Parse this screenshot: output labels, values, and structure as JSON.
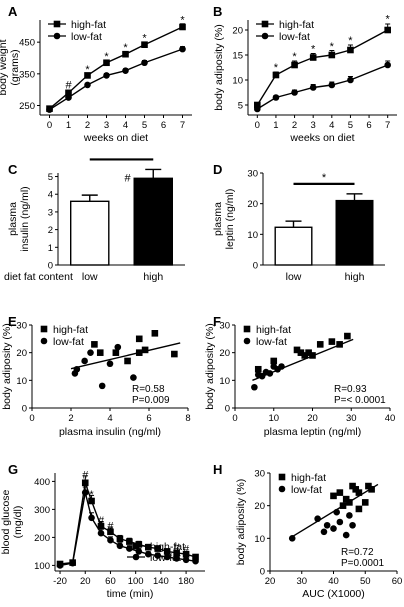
{
  "chart_data": [
    {
      "id": "A",
      "type": "line",
      "panel_label": "A",
      "xlabel": "weeks on diet",
      "ylabel": "body weight (grams)",
      "xlim": [
        -0.5,
        7.5
      ],
      "ylim": [
        220,
        520
      ],
      "xticks": [
        0,
        1,
        2,
        3,
        4,
        5,
        6,
        7
      ],
      "yticks": [
        250,
        350,
        450
      ],
      "series": [
        {
          "name": "high-fat",
          "marker": "square",
          "x": [
            0,
            1,
            2,
            3,
            4,
            5,
            7
          ],
          "y": [
            240,
            290,
            345,
            385,
            412,
            442,
            498
          ],
          "err": [
            5,
            6,
            6,
            7,
            7,
            8,
            10
          ]
        },
        {
          "name": "low-fat",
          "marker": "circle",
          "x": [
            0,
            1,
            2,
            3,
            4,
            5,
            7
          ],
          "y": [
            237,
            275,
            315,
            345,
            360,
            385,
            428
          ],
          "err": [
            5,
            5,
            5,
            6,
            6,
            7,
            8
          ]
        }
      ],
      "annotations": [
        {
          "x": 1,
          "y": 316,
          "text": "#"
        },
        {
          "x": 2,
          "y": 366,
          "text": "*"
        },
        {
          "x": 3,
          "y": 406,
          "text": "*"
        },
        {
          "x": 4,
          "y": 434,
          "text": "*"
        },
        {
          "x": 5,
          "y": 464,
          "text": "*"
        },
        {
          "x": 7,
          "y": 522,
          "text": "*"
        }
      ],
      "legend": "top-left"
    },
    {
      "id": "B",
      "type": "line",
      "panel_label": "B",
      "xlabel": "weeks on diet",
      "ylabel": "body adiposity (%)",
      "xlim": [
        -0.5,
        7.5
      ],
      "ylim": [
        3,
        22
      ],
      "xticks": [
        0,
        1,
        2,
        3,
        4,
        5,
        6,
        7
      ],
      "yticks": [
        5,
        10,
        15,
        20
      ],
      "series": [
        {
          "name": "high-fat",
          "marker": "square",
          "x": [
            0,
            1,
            2,
            3,
            4,
            5,
            7
          ],
          "y": [
            5,
            11,
            13,
            14.5,
            15,
            16,
            20
          ],
          "err": [
            0.4,
            0.6,
            0.8,
            0.8,
            0.9,
            1,
            1.2
          ]
        },
        {
          "name": "low-fat",
          "marker": "circle",
          "x": [
            0,
            1,
            2,
            3,
            4,
            5,
            7
          ],
          "y": [
            4.2,
            6.5,
            7.5,
            8.5,
            9,
            10,
            13
          ],
          "err": [
            0.3,
            0.4,
            0.5,
            0.6,
            0.6,
            0.7,
            0.8
          ]
        }
      ],
      "annotations": [
        {
          "x": 1,
          "y": 12.6,
          "text": "*"
        },
        {
          "x": 2,
          "y": 14.8,
          "text": "*"
        },
        {
          "x": 3,
          "y": 16.3,
          "text": "*"
        },
        {
          "x": 4,
          "y": 16.8,
          "text": "*"
        },
        {
          "x": 5,
          "y": 18.0,
          "text": "*"
        },
        {
          "x": 7,
          "y": 22.3,
          "text": "*"
        }
      ],
      "legend": "top-left"
    },
    {
      "id": "C",
      "type": "bar",
      "panel_label": "C",
      "ylabel": "plasma insulin (ng/ml)",
      "ylim": [
        0,
        5.2
      ],
      "yticks": [
        0,
        1,
        2,
        3,
        4,
        5
      ],
      "row_label": "diet fat content",
      "categories": [
        "low",
        "high"
      ],
      "values": [
        3.6,
        4.9
      ],
      "err": [
        0.35,
        0.5
      ],
      "fills": [
        "#ffffff",
        "#000000"
      ],
      "significance": "#"
    },
    {
      "id": "D",
      "type": "bar",
      "panel_label": "D",
      "ylabel": "plasma leptin (ng/ml)",
      "ylim": [
        0,
        30
      ],
      "yticks": [
        0,
        10,
        20,
        30
      ],
      "categories": [
        "low",
        "high"
      ],
      "values": [
        12.3,
        21
      ],
      "err": [
        2,
        2.2
      ],
      "fills": [
        "#ffffff",
        "#000000"
      ],
      "significance": "*"
    },
    {
      "id": "E",
      "type": "scatter",
      "panel_label": "E",
      "xlabel": "plasma insulin (ng/ml)",
      "ylabel": "body adiposity (%)",
      "xlim": [
        0,
        8
      ],
      "ylim": [
        0,
        30
      ],
      "xticks": [
        0,
        2,
        4,
        6,
        8
      ],
      "yticks": [
        0,
        10,
        20,
        30
      ],
      "series": [
        {
          "name": "high-fat",
          "marker": "square",
          "x": [
            3.2,
            3.5,
            4.3,
            4.9,
            5.5,
            5.5,
            5.8,
            6.3,
            7.3
          ],
          "y": [
            23,
            20,
            20,
            17,
            25,
            20,
            21,
            27,
            19.5
          ]
        },
        {
          "name": "low-fat",
          "marker": "circle",
          "x": [
            2.2,
            2.3,
            2.7,
            3.0,
            3.6,
            4.0,
            4.4,
            5.2
          ],
          "y": [
            12.5,
            14,
            17,
            20,
            8,
            16,
            22,
            11
          ]
        }
      ],
      "fit_line": [
        [
          2.0,
          14.2
        ],
        [
          7.6,
          23.5
        ]
      ],
      "stats": [
        "R=0.58",
        "P=0.009"
      ],
      "legend": "top-left"
    },
    {
      "id": "F",
      "type": "scatter",
      "panel_label": "F",
      "xlabel": "plasma leptin (ng/ml)",
      "ylabel": "body adiposity (%)",
      "xlim": [
        0,
        40
      ],
      "ylim": [
        0,
        30
      ],
      "xticks": [
        0,
        10,
        20,
        30,
        40
      ],
      "yticks": [
        0,
        10,
        20,
        30
      ],
      "series": [
        {
          "name": "high-fat",
          "marker": "square",
          "x": [
            6,
            10,
            16,
            17,
            18,
            19,
            20,
            22,
            25,
            27,
            29
          ],
          "y": [
            14,
            17,
            21,
            20,
            19,
            20,
            19,
            23,
            24,
            23,
            26
          ]
        },
        {
          "name": "low-fat",
          "marker": "circle",
          "x": [
            5,
            6,
            7,
            8,
            9,
            10,
            11,
            12
          ],
          "y": [
            7.5,
            12,
            11.5,
            13,
            12.5,
            15,
            14,
            15
          ]
        }
      ],
      "fit_line": [
        [
          4.5,
          10.0
        ],
        [
          30.5,
          24.8
        ]
      ],
      "stats": [
        "R=0.93",
        "P=< 0.0001"
      ],
      "legend": "top-left"
    },
    {
      "id": "G",
      "type": "line",
      "panel_label": "G",
      "xlabel": "time  (min)",
      "ylabel": "blood glucose (mg/dl)",
      "xlim": [
        -28,
        210
      ],
      "ylim": [
        80,
        430
      ],
      "xticks": [
        -20,
        20,
        60,
        100,
        140,
        180
      ],
      "yticks": [
        100,
        200,
        300,
        400
      ],
      "series": [
        {
          "name": "high-fat",
          "marker": "square",
          "x": [
            -20,
            0,
            20,
            30,
            45,
            60,
            75,
            90,
            105,
            120,
            135,
            150,
            165,
            180,
            195
          ],
          "y": [
            105,
            110,
            395,
            330,
            240,
            220,
            195,
            185,
            175,
            165,
            160,
            150,
            145,
            140,
            130
          ],
          "err": [
            5,
            5,
            25,
            20,
            15,
            14,
            12,
            12,
            11,
            10,
            10,
            9,
            9,
            9,
            8
          ]
        },
        {
          "name": "low-fat",
          "marker": "circle",
          "x": [
            -20,
            0,
            20,
            30,
            45,
            60,
            75,
            90,
            105,
            120,
            135,
            150,
            165,
            180,
            195
          ],
          "y": [
            100,
            108,
            360,
            270,
            215,
            190,
            170,
            160,
            150,
            140,
            135,
            130,
            125,
            120,
            115
          ],
          "err": [
            5,
            5,
            20,
            18,
            14,
            12,
            11,
            10,
            10,
            9,
            9,
            8,
            8,
            8,
            7
          ]
        }
      ],
      "annotations": [
        {
          "x": 20,
          "y": 425,
          "text": "#"
        },
        {
          "x": 30,
          "y": 355,
          "text": "*"
        },
        {
          "x": 45,
          "y": 262,
          "text": "#"
        },
        {
          "x": 60,
          "y": 242,
          "text": "#"
        },
        {
          "x": 165,
          "y": 166,
          "text": "#"
        },
        {
          "x": 180,
          "y": 161,
          "text": "#"
        }
      ],
      "legend": "bottom-right"
    },
    {
      "id": "H",
      "type": "scatter",
      "panel_label": "H",
      "xlabel": "AUC (X1000)",
      "ylabel": "body adiposity (%)",
      "xlim": [
        20,
        60
      ],
      "ylim": [
        0,
        30
      ],
      "xticks": [
        20,
        30,
        40,
        50,
        60
      ],
      "yticks": [
        0,
        10,
        20,
        30
      ],
      "series": [
        {
          "name": "high-fat",
          "marker": "square",
          "x": [
            40,
            42,
            43,
            44,
            45,
            46,
            47,
            48,
            48,
            50,
            51,
            52
          ],
          "y": [
            23,
            24,
            20,
            22,
            21,
            26,
            25,
            24,
            19,
            21,
            26,
            25
          ]
        },
        {
          "name": "low-fat",
          "marker": "circle",
          "x": [
            27,
            35,
            37,
            38,
            40,
            41,
            42,
            44,
            45,
            46
          ],
          "y": [
            10,
            16,
            12,
            14,
            13,
            18,
            15,
            11,
            17,
            14
          ]
        }
      ],
      "fit_line": [
        [
          27,
          10.5
        ],
        [
          54,
          26.5
        ]
      ],
      "stats": [
        "R=0.72",
        "P=0.0001"
      ],
      "legend": "top-left"
    }
  ]
}
